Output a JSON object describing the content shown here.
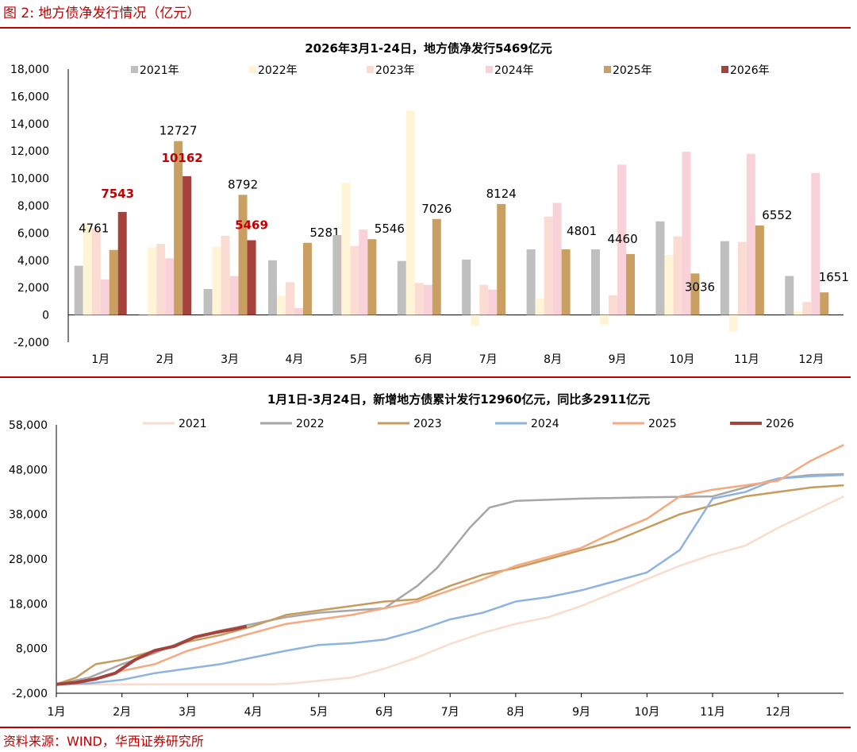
{
  "figure": {
    "title": "图 2:  地方债净发行情况（亿元）",
    "source": "资料来源：WIND，华西证券研究所",
    "accent_color": "#c00000"
  },
  "chart_data": [
    {
      "type": "bar",
      "title": "2026年3月1-24日，地方债净发行5469亿元",
      "categories": [
        "1月",
        "2月",
        "3月",
        "4月",
        "5月",
        "6月",
        "7月",
        "8月",
        "9月",
        "10月",
        "11月",
        "12月"
      ],
      "ylim": [
        -2000,
        18000
      ],
      "yticks": [
        "18,000",
        "16,000",
        "14,000",
        "12,000",
        "10,000",
        "8,000",
        "6,000",
        "4,000",
        "2,000",
        "0",
        "-2,000"
      ],
      "legend_position": "top",
      "series": [
        {
          "name": "2021年",
          "color": "#bfbfbf",
          "values": [
            3600,
            0,
            1900,
            4000,
            5850,
            3950,
            4050,
            4800,
            4800,
            6850,
            5400,
            2850
          ]
        },
        {
          "name": "2022年",
          "color": "#fff5d6",
          "values": [
            6700,
            4950,
            5000,
            1400,
            9650,
            14950,
            -800,
            1200,
            -700,
            4400,
            -1200,
            300
          ]
        },
        {
          "name": "2023年",
          "color": "#fbdcd2",
          "values": [
            6350,
            5200,
            5800,
            2400,
            5050,
            2350,
            2200,
            7200,
            1450,
            5750,
            5350,
            950
          ]
        },
        {
          "name": "2024年",
          "color": "#f9d1d9",
          "values": [
            2600,
            4150,
            2850,
            500,
            6250,
            2200,
            1850,
            8200,
            11000,
            11950,
            11800,
            10400
          ]
        },
        {
          "name": "2025年",
          "color": "#c9a062",
          "values": [
            4761,
            12727,
            8792,
            5281,
            5546,
            7026,
            8124,
            4801,
            4460,
            3036,
            6552,
            1651
          ]
        },
        {
          "name": "2026年",
          "color": "#a5423c",
          "values": [
            7543,
            10162,
            5469,
            null,
            null,
            null,
            null,
            null,
            null,
            null,
            null,
            null
          ]
        }
      ],
      "labels_2025": [
        "4761",
        "12727",
        "8792",
        "5281",
        "5546",
        "7026",
        "8124",
        "4801",
        "4460",
        "3036",
        "6552",
        "1651"
      ],
      "labels_2026": [
        "7543",
        "10162",
        "5469"
      ]
    },
    {
      "type": "line",
      "title": "1月1日-3月24日，新增地方债累计发行12960亿元，同比多2911亿元",
      "xlabels": [
        "1月",
        "2月",
        "3月",
        "4月",
        "5月",
        "6月",
        "7月",
        "8月",
        "9月",
        "10月",
        "11月",
        "12月"
      ],
      "ylim": [
        -2000,
        58000
      ],
      "yticks": [
        "58,000",
        "48,000",
        "38,000",
        "28,000",
        "18,000",
        "8,000",
        "-2,000"
      ],
      "legend_position": "top",
      "series": [
        {
          "name": "2021",
          "color": "#f9dccc",
          "x": [
            0,
            2,
            3,
            3.3,
            3.6,
            4,
            4.5,
            5,
            5.5,
            6,
            6.5,
            7,
            7.5,
            8,
            8.5,
            9,
            9.5,
            10,
            10.5,
            11,
            11.5,
            12
          ],
          "y": [
            0,
            0,
            0,
            0,
            200,
            800,
            1500,
            3500,
            6000,
            9000,
            11500,
            13500,
            15000,
            17500,
            20500,
            23500,
            26500,
            29000,
            31000,
            35000,
            38500,
            42000
          ]
        },
        {
          "name": "2022",
          "color": "#a6a6a6",
          "x": [
            0,
            0.5,
            1,
            1.5,
            2,
            2.5,
            3,
            3.5,
            4,
            4.5,
            5,
            5.5,
            5.8,
            6,
            6.3,
            6.6,
            7,
            8,
            9,
            10,
            11,
            11.5,
            12
          ],
          "y": [
            0,
            1500,
            4500,
            7000,
            10000,
            12000,
            13500,
            15000,
            16000,
            16500,
            17000,
            22000,
            26000,
            29500,
            35000,
            39500,
            41000,
            41500,
            41800,
            42000,
            46000,
            46800,
            47000
          ]
        },
        {
          "name": "2023",
          "color": "#c69c5e",
          "x": [
            0,
            0.3,
            0.6,
            1,
            1.5,
            2,
            2.5,
            3,
            3.5,
            4,
            4.5,
            5,
            5.5,
            6,
            6.5,
            7,
            7.5,
            8,
            8.5,
            9,
            9.5,
            10,
            10.5,
            11,
            11.5,
            12
          ],
          "y": [
            0,
            1500,
            4500,
            5500,
            7500,
            9500,
            11000,
            13000,
            15500,
            16500,
            17500,
            18500,
            19000,
            22000,
            24500,
            26000,
            28000,
            30000,
            32000,
            35000,
            38000,
            40000,
            42000,
            43000,
            44000,
            44500
          ]
        },
        {
          "name": "2024",
          "color": "#8eb3e0",
          "x": [
            0,
            0.5,
            1,
            1.5,
            2,
            2.5,
            3,
            3.5,
            4,
            4.5,
            5,
            5.5,
            6,
            6.5,
            7,
            7.5,
            8,
            8.5,
            9,
            9.2,
            9.5,
            10,
            10.5,
            11,
            11.5,
            12
          ],
          "y": [
            0,
            200,
            1000,
            2500,
            3500,
            4500,
            6000,
            7500,
            8800,
            9200,
            10000,
            12000,
            14500,
            16000,
            18500,
            19500,
            21000,
            23000,
            25000,
            27000,
            30000,
            41500,
            43000,
            46000,
            46500,
            46800
          ]
        },
        {
          "name": "2025",
          "color": "#f4a97e",
          "x": [
            0,
            0.5,
            1,
            1.5,
            2,
            2.5,
            3,
            3.5,
            4,
            4.5,
            5,
            5.5,
            6,
            6.5,
            7,
            7.5,
            8,
            8.5,
            9,
            9.5,
            10,
            10.5,
            11,
            11.5,
            12
          ],
          "y": [
            0,
            800,
            3000,
            4500,
            7500,
            9500,
            11500,
            13500,
            14500,
            15500,
            17000,
            18500,
            21000,
            23500,
            26500,
            28500,
            30500,
            34000,
            37000,
            42000,
            43500,
            44500,
            45500,
            50000,
            53500
          ]
        },
        {
          "name": "2026",
          "color": "#a5423c",
          "x": [
            0,
            0.3,
            0.6,
            0.9,
            1.2,
            1.5,
            1.8,
            2.1,
            2.4,
            2.7,
            2.9
          ],
          "y": [
            0,
            400,
            1200,
            2500,
            5500,
            7543,
            8500,
            10500,
            11500,
            12300,
            12960
          ]
        }
      ]
    }
  ]
}
